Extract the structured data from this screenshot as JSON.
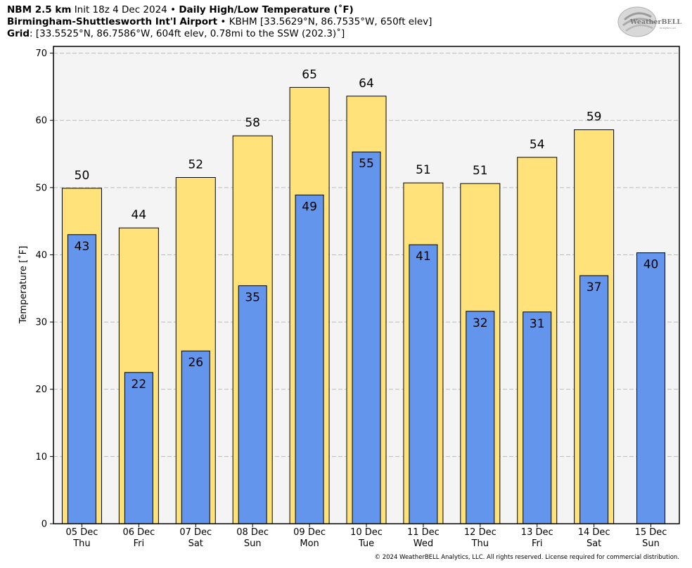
{
  "header": {
    "line1": {
      "model": "NBM 2.5 km",
      "init": "Init 18z 4 Dec 2024",
      "sep": "•",
      "product": "Daily High/Low Temperature (˚F)"
    },
    "line2": {
      "station": "Birmingham-Shuttlesworth Int'l Airport",
      "sep": "•",
      "details": "KBHM [33.5629°N, 86.7535°W, 650ft elev]"
    },
    "line3": {
      "label": "Grid",
      "details": ": [33.5525°N, 86.7586°W, 604ft elev, 0.78mi to the SSW (202.3)˚]"
    }
  },
  "logo": {
    "text_main": "WeatherBELL",
    "text_sub": "Analytics LLC"
  },
  "copyright": "© 2024 WeatherBELL Analytics, LLC. All rights reserved. License required for commercial distribution.",
  "colors": {
    "high": "#ffe37a",
    "low": "#6495ed",
    "plot_bg": "#f4f4f4",
    "grid": "#bbbbbb"
  },
  "chart_data": {
    "type": "bar",
    "title": "Daily High/Low Temperature (˚F)",
    "ylabel": "Temperature [˚F]",
    "ylim": [
      0,
      71
    ],
    "yticks": [
      0,
      10,
      20,
      30,
      40,
      50,
      60,
      70
    ],
    "grid": true,
    "categories": [
      {
        "date": "05 Dec",
        "day": "Thu"
      },
      {
        "date": "06 Dec",
        "day": "Fri"
      },
      {
        "date": "07 Dec",
        "day": "Sat"
      },
      {
        "date": "08 Dec",
        "day": "Sun"
      },
      {
        "date": "09 Dec",
        "day": "Mon"
      },
      {
        "date": "10 Dec",
        "day": "Tue"
      },
      {
        "date": "11 Dec",
        "day": "Wed"
      },
      {
        "date": "12 Dec",
        "day": "Thu"
      },
      {
        "date": "13 Dec",
        "day": "Fri"
      },
      {
        "date": "14 Dec",
        "day": "Sat"
      },
      {
        "date": "15 Dec",
        "day": "Sun"
      }
    ],
    "series": [
      {
        "key": "high",
        "values": [
          49.9,
          44.0,
          51.5,
          57.7,
          64.9,
          63.6,
          50.7,
          50.6,
          54.5,
          58.6,
          null
        ],
        "labels": [
          "50",
          "44",
          "52",
          "58",
          "65",
          "64",
          "51",
          "51",
          "54",
          "59",
          null
        ]
      },
      {
        "key": "low",
        "values": [
          43.0,
          22.5,
          25.7,
          35.4,
          48.9,
          55.3,
          41.5,
          31.6,
          31.5,
          36.9,
          40.3
        ],
        "labels": [
          "43",
          "22",
          "26",
          "35",
          "49",
          "55",
          "41",
          "32",
          "31",
          "37",
          "40"
        ]
      }
    ]
  }
}
